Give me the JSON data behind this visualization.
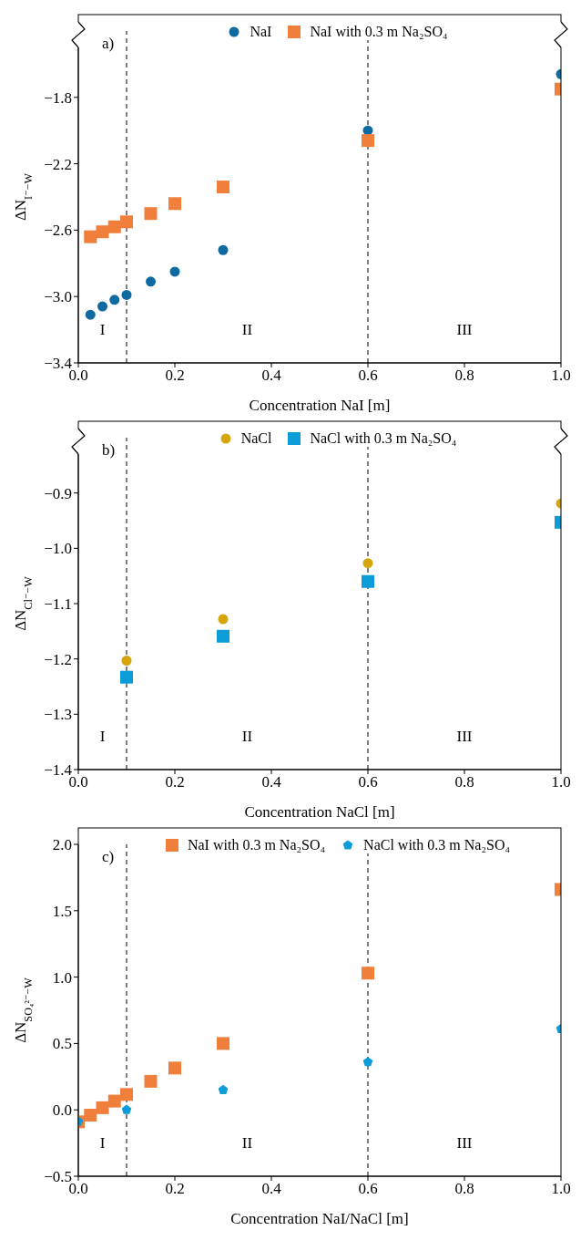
{
  "chart_data": [
    {
      "type": "scatter",
      "xlabel": "Concentration NaI [m]",
      "ylabel": "ΔN$_{I⁻−W}$",
      "annotations": [
        "a)",
        "I",
        "II",
        "III"
      ],
      "legend": "top",
      "xlim": [
        0,
        1
      ],
      "xticks": [
        {
          "value": 0,
          "label": "0.0"
        },
        {
          "value": 0.2,
          "label": "0.2"
        },
        {
          "value": 0.4,
          "label": "0.4"
        },
        {
          "value": 0.6,
          "label": "0.6"
        },
        {
          "value": 0.8,
          "label": "0.8"
        },
        {
          "value": 1,
          "label": "1.0"
        }
      ],
      "ylim": [
        -3.4,
        -1.4
      ],
      "yticks": [
        {
          "value": -3.4,
          "label": "−3.4"
        },
        {
          "value": -3.0,
          "label": "−3.0"
        },
        {
          "value": -2.6,
          "label": "−2.6"
        },
        {
          "value": -2.2,
          "label": "−2.2"
        },
        {
          "value": -1.8,
          "label": "−1.8"
        }
      ],
      "ref_lines": [
        {
          "axis": "x",
          "value": 0.1,
          "line_style": "dashed"
        },
        {
          "axis": "x",
          "value": 0.6,
          "line_style": "dashed"
        }
      ],
      "series": [
        {
          "name": "NaI",
          "color": "#0f6aa0",
          "marker": "circle",
          "x": [
            0.025,
            0.05,
            0.075,
            0.1,
            0.15,
            0.2,
            0.3,
            0.6,
            1.0
          ],
          "values": [
            -3.11,
            -3.06,
            -3.02,
            -2.99,
            -2.91,
            -2.85,
            -2.72,
            -2.0,
            -1.66
          ]
        },
        {
          "name": "NaI with 0.3 m Na₂SO₄",
          "color": "#f07f3c",
          "marker": "square",
          "x": [
            0.025,
            0.05,
            0.075,
            0.1,
            0.15,
            0.2,
            0.3,
            0.6,
            1.0
          ],
          "values": [
            -2.64,
            -2.61,
            -2.58,
            -2.55,
            -2.5,
            -2.44,
            -2.34,
            -2.06,
            -1.75
          ]
        }
      ]
    },
    {
      "type": "scatter",
      "xlabel": "Concentration NaCl [m]",
      "ylabel": "ΔN$_{Cl⁻−W}$",
      "annotations": [
        "b)",
        "I",
        "II",
        "III"
      ],
      "legend": "top",
      "xlim": [
        0,
        1
      ],
      "xticks": [
        {
          "value": 0,
          "label": "0.0"
        },
        {
          "value": 0.2,
          "label": "0.2"
        },
        {
          "value": 0.4,
          "label": "0.4"
        },
        {
          "value": 0.6,
          "label": "0.6"
        },
        {
          "value": 0.8,
          "label": "0.8"
        },
        {
          "value": 1,
          "label": "1.0"
        }
      ],
      "ylim": [
        -1.4,
        -0.8
      ],
      "yticks": [
        {
          "value": -1.4,
          "label": "−1.4"
        },
        {
          "value": -1.3,
          "label": "−1.3"
        },
        {
          "value": -1.2,
          "label": "−1.2"
        },
        {
          "value": -1.1,
          "label": "−1.1"
        },
        {
          "value": -1.0,
          "label": "−1.0"
        },
        {
          "value": -0.9,
          "label": "−0.9"
        }
      ],
      "ref_lines": [
        {
          "axis": "x",
          "value": 0.1,
          "line_style": "dashed"
        },
        {
          "axis": "x",
          "value": 0.6,
          "line_style": "dashed"
        }
      ],
      "series": [
        {
          "name": "NaCl",
          "color": "#d4a60c",
          "marker": "circle",
          "x": [
            0.1,
            0.3,
            0.6,
            1.0
          ],
          "values": [
            -1.203,
            -1.128,
            -1.027,
            -0.919
          ]
        },
        {
          "name": "NaCl with 0.3 m Na₂SO₄",
          "color": "#0c9dd9",
          "marker": "square",
          "x": [
            0.1,
            0.3,
            0.6,
            1.0
          ],
          "values": [
            -1.233,
            -1.159,
            -1.06,
            -0.953
          ]
        }
      ]
    },
    {
      "type": "scatter",
      "xlabel": "Concentration NaI/NaCl [m]",
      "ylabel": "ΔN$_{SO₄²⁻−W}$",
      "annotations": [
        "c)",
        "I",
        "II",
        "III"
      ],
      "legend": "top",
      "xlim": [
        0,
        1
      ],
      "xticks": [
        {
          "value": 0,
          "label": "0.0"
        },
        {
          "value": 0.2,
          "label": "0.2"
        },
        {
          "value": 0.4,
          "label": "0.4"
        },
        {
          "value": 0.6,
          "label": "0.6"
        },
        {
          "value": 0.8,
          "label": "0.8"
        },
        {
          "value": 1,
          "label": "1.0"
        }
      ],
      "ylim": [
        -0.5,
        2.0
      ],
      "yticks": [
        {
          "value": -0.5,
          "label": "−0.5"
        },
        {
          "value": 0,
          "label": "0.0"
        },
        {
          "value": 0.5,
          "label": "0.5"
        },
        {
          "value": 1.0,
          "label": "1.0"
        },
        {
          "value": 1.5,
          "label": "1.5"
        },
        {
          "value": 2.0,
          "label": "2.0"
        }
      ],
      "ref_lines": [
        {
          "axis": "x",
          "value": 0.1,
          "line_style": "dashed"
        },
        {
          "axis": "x",
          "value": 0.6,
          "line_style": "dashed"
        }
      ],
      "series": [
        {
          "name": "NaI with 0.3 m Na₂SO₄",
          "color": "#f07f3c",
          "marker": "square",
          "x": [
            0.0,
            0.025,
            0.05,
            0.075,
            0.1,
            0.15,
            0.2,
            0.3,
            0.6,
            1.0
          ],
          "values": [
            -0.09,
            -0.04,
            0.016,
            0.066,
            0.116,
            0.215,
            0.315,
            0.5,
            1.03,
            1.66
          ]
        },
        {
          "name": "NaCl with 0.3 m Na₂SO₄",
          "color": "#0c9dd9",
          "x": [
            0.0,
            0.1,
            0.3,
            0.6,
            1.0
          ],
          "values": [
            -0.087,
            0.0,
            0.15,
            0.36,
            0.61
          ]
        }
      ]
    }
  ]
}
